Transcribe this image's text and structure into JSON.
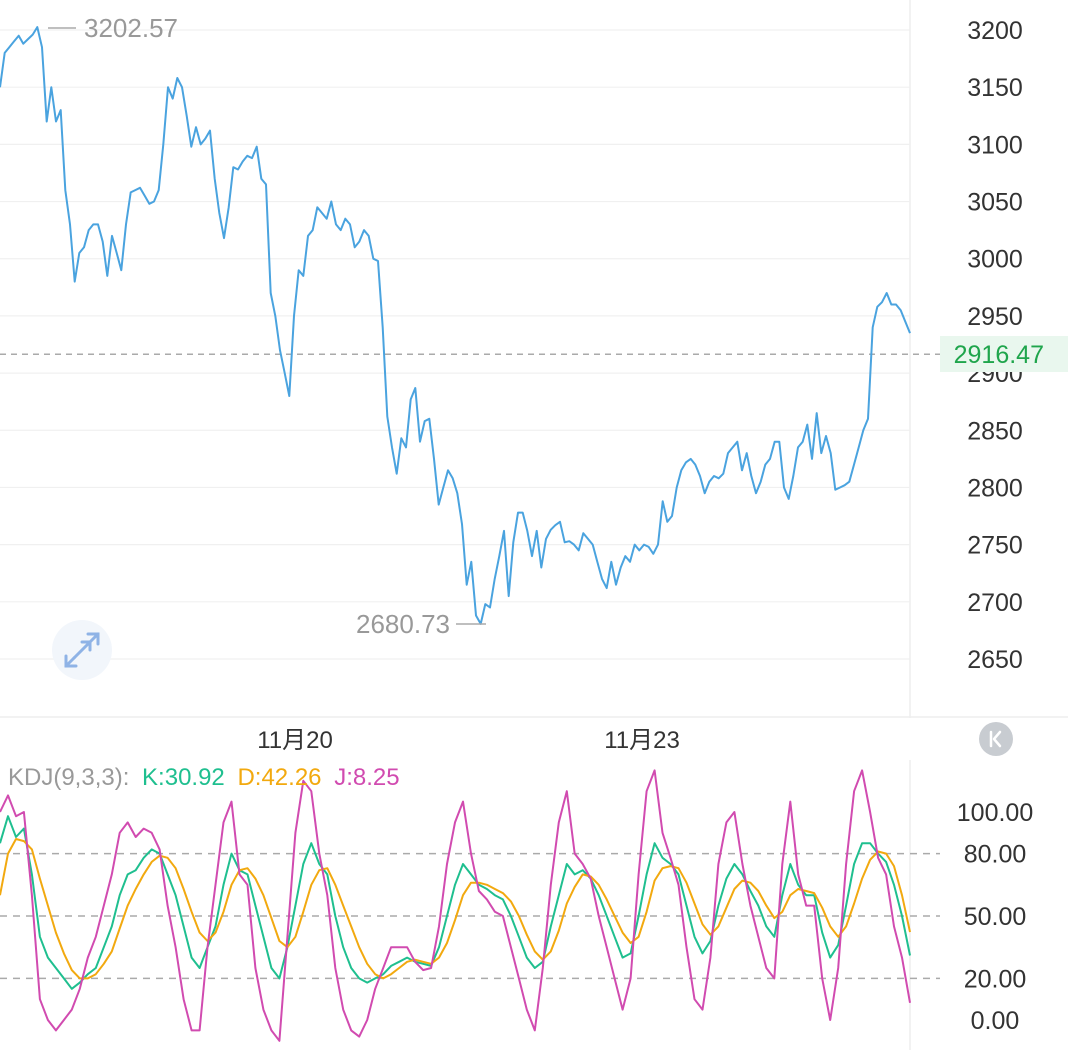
{
  "chart_data": [
    {
      "type": "line",
      "ylim": [
        2630,
        3225
      ],
      "y_ticks": [
        3200,
        3150,
        3100,
        3050,
        3000,
        2950,
        2900,
        2850,
        2800,
        2750,
        2700,
        2650
      ],
      "x_tick_labels": [
        "11月20",
        "11月23"
      ],
      "current_value": 2916.47,
      "current_label": "2916.47",
      "max_label": "3202.57",
      "min_label": "2680.73",
      "series": [
        {
          "color": "#4aa3df",
          "values": [
            3150,
            3180,
            3185,
            3190,
            3195,
            3188,
            3192,
            3196,
            3202.57,
            3185,
            3120,
            3150,
            3120,
            3130,
            3060,
            3030,
            2980,
            3005,
            3010,
            3025,
            3030,
            3030,
            3015,
            2985,
            3020,
            3005,
            2990,
            3030,
            3058,
            3060,
            3062,
            3055,
            3048,
            3050,
            3060,
            3100,
            3150,
            3140,
            3158,
            3150,
            3125,
            3098,
            3115,
            3100,
            3105,
            3112,
            3070,
            3040,
            3018,
            3045,
            3080,
            3078,
            3085,
            3090,
            3088,
            3098,
            3070,
            3065,
            2970,
            2950,
            2920,
            2900,
            2880,
            2950,
            2990,
            2985,
            3020,
            3025,
            3045,
            3040,
            3035,
            3050,
            3030,
            3025,
            3035,
            3030,
            3010,
            3015,
            3025,
            3020,
            3000,
            2998,
            2940,
            2862,
            2835,
            2812,
            2843,
            2835,
            2877,
            2887,
            2840,
            2858,
            2860,
            2825,
            2785,
            2800,
            2815,
            2808,
            2795,
            2768,
            2715,
            2735,
            2688,
            2680.73,
            2698,
            2695,
            2720,
            2740,
            2762,
            2705,
            2752,
            2778,
            2778,
            2762,
            2740,
            2762,
            2730,
            2755,
            2763,
            2767,
            2770,
            2752,
            2753,
            2750,
            2745,
            2760,
            2755,
            2750,
            2735,
            2720,
            2712,
            2735,
            2715,
            2730,
            2740,
            2735,
            2750,
            2745,
            2750,
            2748,
            2742,
            2750,
            2788,
            2770,
            2775,
            2800,
            2815,
            2822,
            2825,
            2820,
            2810,
            2795,
            2805,
            2810,
            2808,
            2812,
            2830,
            2835,
            2840,
            2815,
            2830,
            2810,
            2795,
            2805,
            2820,
            2825,
            2840,
            2840,
            2800,
            2790,
            2810,
            2835,
            2840,
            2855,
            2825,
            2865,
            2830,
            2845,
            2830,
            2798,
            2800,
            2802,
            2805,
            2820,
            2835,
            2850,
            2860,
            2940,
            2958,
            2962,
            2970,
            2960,
            2960,
            2955,
            2945,
            2935
          ]
        }
      ]
    },
    {
      "type": "line",
      "title": "KDJ(9,3,3):",
      "ylim": [
        -8,
        112
      ],
      "y_ticks": [
        100.0,
        80.0,
        50.0,
        20.0,
        0.0
      ],
      "y_tick_labels": [
        "100.00",
        "80.00",
        "50.00",
        "20.00",
        "0.00"
      ],
      "ref_lines": [
        80,
        50,
        20
      ],
      "series": [
        {
          "name": "K",
          "label": "K:30.92",
          "color": "#1fbf8f",
          "values": [
            85,
            98,
            88,
            92,
            70,
            40,
            30,
            25,
            20,
            15,
            18,
            22,
            25,
            35,
            45,
            60,
            70,
            72,
            78,
            82,
            80,
            70,
            60,
            45,
            30,
            25,
            35,
            45,
            65,
            80,
            72,
            70,
            55,
            40,
            25,
            20,
            35,
            55,
            75,
            85,
            75,
            70,
            50,
            35,
            25,
            20,
            18,
            20,
            22,
            26,
            28,
            30,
            28,
            27,
            26,
            35,
            50,
            65,
            75,
            70,
            65,
            63,
            60,
            58,
            50,
            40,
            30,
            25,
            28,
            45,
            60,
            75,
            70,
            72,
            68,
            60,
            50,
            40,
            30,
            32,
            50,
            70,
            85,
            78,
            75,
            70,
            55,
            40,
            32,
            38,
            55,
            68,
            75,
            70,
            62,
            55,
            45,
            40,
            60,
            75,
            65,
            60,
            60,
            42,
            30,
            36,
            55,
            75,
            85,
            85,
            80,
            76,
            65,
            50,
            31
          ]
        },
        {
          "name": "D",
          "label": "D:42.26",
          "color": "#f2a90f",
          "values": [
            60,
            80,
            87,
            86,
            82,
            68,
            55,
            42,
            32,
            24,
            20,
            20,
            22,
            27,
            33,
            44,
            55,
            63,
            70,
            76,
            79,
            78,
            73,
            63,
            52,
            42,
            38,
            42,
            52,
            65,
            72,
            73,
            68,
            60,
            49,
            38,
            35,
            40,
            52,
            65,
            72,
            73,
            65,
            55,
            45,
            35,
            27,
            22,
            20,
            22,
            25,
            28,
            29,
            28,
            27,
            30,
            37,
            48,
            60,
            66,
            66,
            65,
            63,
            61,
            57,
            50,
            41,
            33,
            29,
            33,
            43,
            56,
            64,
            70,
            69,
            65,
            58,
            50,
            42,
            37,
            40,
            52,
            67,
            73,
            74,
            73,
            66,
            56,
            46,
            41,
            45,
            54,
            63,
            67,
            66,
            62,
            55,
            49,
            52,
            60,
            63,
            62,
            61,
            54,
            45,
            40,
            45,
            56,
            68,
            77,
            81,
            80,
            74,
            60,
            42.26
          ]
        },
        {
          "name": "J",
          "label": "J:8.25",
          "color": "#d14bb0",
          "values": [
            100,
            108,
            98,
            100,
            60,
            10,
            0,
            -5,
            0,
            5,
            15,
            30,
            40,
            55,
            70,
            90,
            95,
            88,
            92,
            90,
            82,
            55,
            35,
            10,
            -5,
            -5,
            35,
            65,
            95,
            105,
            70,
            65,
            25,
            5,
            -5,
            -10,
            40,
            90,
            115,
            110,
            80,
            60,
            25,
            5,
            -5,
            -8,
            0,
            15,
            25,
            35,
            35,
            35,
            28,
            24,
            25,
            45,
            75,
            95,
            105,
            80,
            62,
            58,
            52,
            50,
            35,
            20,
            5,
            -5,
            25,
            65,
            95,
            110,
            80,
            75,
            68,
            50,
            35,
            20,
            5,
            20,
            70,
            110,
            120,
            90,
            78,
            65,
            35,
            10,
            5,
            30,
            75,
            95,
            100,
            75,
            55,
            40,
            25,
            20,
            75,
            105,
            70,
            55,
            55,
            20,
            0,
            25,
            75,
            110,
            120,
            100,
            78,
            70,
            45,
            30,
            8.25
          ]
        }
      ]
    }
  ]
}
